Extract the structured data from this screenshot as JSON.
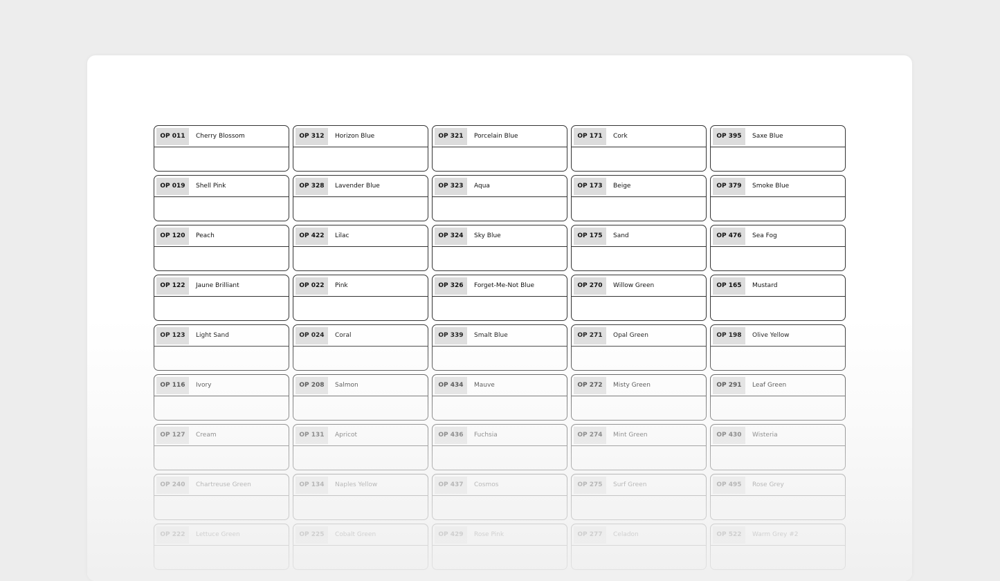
{
  "swatches": [
    [
      {
        "code": "OP 011",
        "name": "Cherry Blossom"
      },
      {
        "code": "OP 312",
        "name": "Horizon Blue"
      },
      {
        "code": "OP 321",
        "name": "Porcelain Blue"
      },
      {
        "code": "OP 171",
        "name": "Cork"
      },
      {
        "code": "OP 395",
        "name": "Saxe Blue"
      }
    ],
    [
      {
        "code": "OP 019",
        "name": "Shell Pink"
      },
      {
        "code": "OP 328",
        "name": "Lavender Blue"
      },
      {
        "code": "OP 323",
        "name": "Aqua"
      },
      {
        "code": "OP 173",
        "name": "Beige"
      },
      {
        "code": "OP 379",
        "name": "Smoke Blue"
      }
    ],
    [
      {
        "code": "OP 120",
        "name": "Peach"
      },
      {
        "code": "OP 422",
        "name": "Lilac"
      },
      {
        "code": "OP 324",
        "name": "Sky Blue"
      },
      {
        "code": "OP 175",
        "name": "Sand"
      },
      {
        "code": "OP 476",
        "name": "Sea Fog"
      }
    ],
    [
      {
        "code": "OP 122",
        "name": "Jaune Brilliant"
      },
      {
        "code": "OP 022",
        "name": "Pink"
      },
      {
        "code": "OP 326",
        "name": "Forget-Me-Not Blue"
      },
      {
        "code": "OP 270",
        "name": "Willow Green"
      },
      {
        "code": "OP 165",
        "name": "Mustard"
      }
    ],
    [
      {
        "code": "OP 123",
        "name": "Light Sand"
      },
      {
        "code": "OP 024",
        "name": "Coral"
      },
      {
        "code": "OP 339",
        "name": "Smalt Blue"
      },
      {
        "code": "OP 271",
        "name": "Opal Green"
      },
      {
        "code": "OP 198",
        "name": "Olive Yellow"
      }
    ],
    [
      {
        "code": "OP 116",
        "name": "Ivory"
      },
      {
        "code": "OP 208",
        "name": "Salmon"
      },
      {
        "code": "OP 434",
        "name": "Mauve"
      },
      {
        "code": "OP 272",
        "name": "Misty Green"
      },
      {
        "code": "OP 291",
        "name": "Leaf Green"
      }
    ],
    [
      {
        "code": "OP 127",
        "name": "Cream"
      },
      {
        "code": "OP 131",
        "name": "Apricot"
      },
      {
        "code": "OP 436",
        "name": "Fuchsia"
      },
      {
        "code": "OP 274",
        "name": "Mint Green"
      },
      {
        "code": "OP 430",
        "name": "Wisteria"
      }
    ],
    [
      {
        "code": "OP 240",
        "name": "Chartreuse Green"
      },
      {
        "code": "OP 134",
        "name": "Naples Yellow"
      },
      {
        "code": "OP 437",
        "name": "Cosmos"
      },
      {
        "code": "OP 275",
        "name": "Surf Green"
      },
      {
        "code": "OP 495",
        "name": "Rose Grey"
      }
    ],
    [
      {
        "code": "OP 222",
        "name": "Lettuce Green"
      },
      {
        "code": "OP 225",
        "name": "Cobalt Green"
      },
      {
        "code": "OP 429",
        "name": "Rose Pink"
      },
      {
        "code": "OP 277",
        "name": "Celadon"
      },
      {
        "code": "OP 522",
        "name": "Warm Grey #2"
      }
    ]
  ]
}
